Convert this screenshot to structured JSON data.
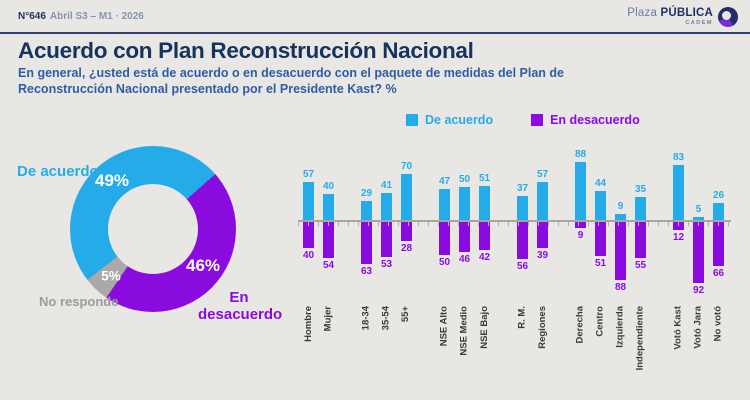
{
  "header": {
    "issue": "N°646",
    "period": "Abril S3 – M1 · 2026",
    "brand_plaza": "Plaza",
    "brand_publica": "PÚBLICA",
    "brand_cadem": "CADEM"
  },
  "title": "Acuerdo con Plan Reconstrucción Nacional",
  "subtitle": "En general, ¿usted está de acuerdo o en desacuerdo con el paquete de medidas del Plan de Reconstrucción Nacional presentado por el Presidente Kast? %",
  "colors": {
    "agree": "#25ACE8",
    "disagree": "#8A0BDE",
    "no_answer_slice": "#ABA9A7",
    "no_answer_text": "#9B9B9B",
    "title": "#16335E",
    "subtitle": "#2E5DA6",
    "rule": "#343E75",
    "axis": "#A8A6A3",
    "tick": "#B3B1AE",
    "background": "#E9E7E4"
  },
  "legend": {
    "agree": "De acuerdo",
    "disagree": "En desacuerdo"
  },
  "donut_labels": {
    "agree": "De acuerdo",
    "agree_pct": "49%",
    "disagree_line1": "En",
    "disagree_line2": "desacuerdo",
    "disagree_pct": "46%",
    "no_answer": "No responde",
    "no_answer_pct": "5%"
  },
  "chart_data": [
    {
      "type": "pie",
      "donut": true,
      "labels": [
        "De acuerdo",
        "En desacuerdo",
        "No responde"
      ],
      "values": [
        49,
        46,
        5
      ],
      "colors": [
        "#25ACE8",
        "#8A0BDE",
        "#ABA9A7"
      ],
      "start_angle_deg": 48.6,
      "order_clockwise_from_start": [
        "En desacuerdo",
        "No responde",
        "De acuerdo"
      ]
    },
    {
      "type": "bar",
      "orientation": "diverging-vertical",
      "unit": "%",
      "categories": [
        "Hombre",
        "Mujer",
        "18-34",
        "35-54",
        "55+",
        "NSE Alto",
        "NSE Medio",
        "NSE Bajo",
        "R. M.",
        "Regiones",
        "Derecha",
        "Centro",
        "Izquierda",
        "Independiente",
        "Votó Kast",
        "Votó Jara",
        "No votó"
      ],
      "group_sizes": [
        2,
        3,
        3,
        2,
        4,
        3
      ],
      "series": [
        {
          "name": "De acuerdo",
          "color_key": "agree",
          "values": [
            57,
            40,
            29,
            41,
            70,
            47,
            50,
            51,
            37,
            57,
            88,
            44,
            9,
            35,
            83,
            5,
            26
          ]
        },
        {
          "name": "En desacuerdo",
          "color_key": "disagree",
          "values": [
            40,
            54,
            63,
            53,
            28,
            50,
            46,
            42,
            56,
            39,
            9,
            51,
            88,
            55,
            12,
            92,
            66
          ]
        }
      ],
      "value_labels": true,
      "gridlines": false
    }
  ]
}
